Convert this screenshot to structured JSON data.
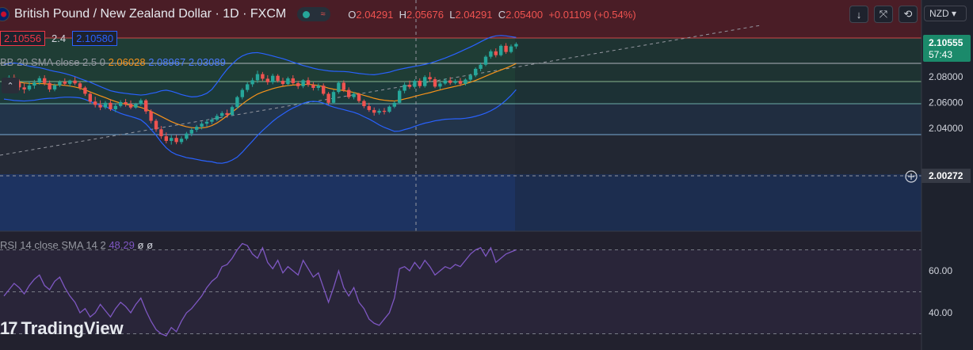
{
  "header": {
    "symbol": "British Pound / New Zealand Dollar · 1D · FXCM",
    "open_label": "O",
    "open": "2.04291",
    "high_label": "H",
    "high": "2.05676",
    "low_label": "L",
    "low": "2.04291",
    "close_label": "C",
    "close": "2.05400",
    "change": "+0.01109 (+0.54%)"
  },
  "toolbar": {
    "currency": "NZD"
  },
  "quote": {
    "bid": "2.10556",
    "spread": "2.4",
    "ask": "2.10580"
  },
  "indicators": {
    "bb_label": "BB 20 SMA close 2.5 0",
    "bb_basis": "2.06028",
    "bb_upper": "2.08967",
    "bb_lower": "2.03089",
    "rsi_label": "RSI 14 close SMA 14 2",
    "rsi_value": "48.29",
    "rsi_na1": "ø",
    "rsi_na2": "ø"
  },
  "watermark": "TradingView",
  "colors": {
    "up": "#26a69a",
    "down": "#ef5350",
    "bb_band": "#2962ff",
    "bb_basis": "#f7931a",
    "rsi": "#7e57c2",
    "price_tag": "#1b8a6b"
  },
  "chart_data": [
    {
      "type": "candlestick",
      "title": "British Pound / New Zealand Dollar · 1D · FXCM",
      "price_axis": {
        "ticks": [
          "2.08000",
          "2.06000",
          "2.04000"
        ]
      },
      "last_price": "2.10555",
      "countdown": "57:43",
      "crosshair_price": "2.00272",
      "candles": [
        [
          2.0738,
          2.0778,
          2.0696,
          2.0755
        ],
        [
          2.0755,
          2.0812,
          2.0728,
          2.0795
        ],
        [
          2.0795,
          2.0818,
          2.0734,
          2.0758
        ],
        [
          2.0758,
          2.0779,
          2.0695,
          2.0718
        ],
        [
          2.0718,
          2.0748,
          2.0671,
          2.0702
        ],
        [
          2.0702,
          2.0763,
          2.0689,
          2.0732
        ],
        [
          2.0732,
          2.0776,
          2.0708,
          2.0755
        ],
        [
          2.0755,
          2.0807,
          2.0739,
          2.0789
        ],
        [
          2.0789,
          2.0812,
          2.0733,
          2.0752
        ],
        [
          2.0752,
          2.0771,
          2.0682,
          2.0702
        ],
        [
          2.0702,
          2.0748,
          2.0688,
          2.0734
        ],
        [
          2.0734,
          2.0773,
          2.0721,
          2.0762
        ],
        [
          2.0762,
          2.0788,
          2.0731,
          2.0746
        ],
        [
          2.0746,
          2.0778,
          2.0725,
          2.0771
        ],
        [
          2.0771,
          2.0798,
          2.0734,
          2.0749
        ],
        [
          2.0749,
          2.0762,
          2.0697,
          2.0716
        ],
        [
          2.0716,
          2.0728,
          2.0651,
          2.0668
        ],
        [
          2.0668,
          2.0684,
          2.0592,
          2.0608
        ],
        [
          2.0608,
          2.0645,
          2.0562,
          2.0582
        ],
        [
          2.0582,
          2.0617,
          2.0541,
          2.0562
        ],
        [
          2.0562,
          2.0612,
          2.0549,
          2.0598
        ],
        [
          2.0598,
          2.0627,
          2.0535,
          2.0548
        ],
        [
          2.0548,
          2.0589,
          2.0525,
          2.0574
        ],
        [
          2.0574,
          2.0618,
          2.0562,
          2.0603
        ],
        [
          2.0603,
          2.0628,
          2.0568,
          2.0589
        ],
        [
          2.0589,
          2.0616,
          2.0548,
          2.0561
        ],
        [
          2.0561,
          2.0598,
          2.0552,
          2.0588
        ],
        [
          2.0588,
          2.0631,
          2.0575,
          2.0617
        ],
        [
          2.0617,
          2.0628,
          2.0512,
          2.0531
        ],
        [
          2.0531,
          2.0547,
          2.0438,
          2.0458
        ],
        [
          2.0458,
          2.0472,
          2.0372,
          2.0392
        ],
        [
          2.0392,
          2.0418,
          2.0318,
          2.0338
        ],
        [
          2.0338,
          2.0368,
          2.0283,
          2.0302
        ],
        [
          2.0302,
          2.0346,
          2.0273,
          2.0325
        ],
        [
          2.0325,
          2.0348,
          2.0276,
          2.0293
        ],
        [
          2.0293,
          2.0338,
          2.0276,
          2.0319
        ],
        [
          2.0319,
          2.0372,
          2.0306,
          2.0359
        ],
        [
          2.0359,
          2.0402,
          2.0338,
          2.0388
        ],
        [
          2.0388,
          2.0426,
          2.0371,
          2.0412
        ],
        [
          2.0412,
          2.0452,
          2.0391,
          2.0436
        ],
        [
          2.0436,
          2.0468,
          2.0412,
          2.0451
        ],
        [
          2.0451,
          2.0483,
          2.0432,
          2.0467
        ],
        [
          2.0467,
          2.0512,
          2.0455,
          2.0496
        ],
        [
          2.0496,
          2.0533,
          2.0478,
          2.0518
        ],
        [
          2.0518,
          2.0545,
          2.0482,
          2.0504
        ],
        [
          2.0504,
          2.0578,
          2.0496,
          2.0565
        ],
        [
          2.0565,
          2.0653,
          2.0552,
          2.0642
        ],
        [
          2.0642,
          2.0712,
          2.0625,
          2.0698
        ],
        [
          2.0698,
          2.0758,
          2.0681,
          2.0742
        ],
        [
          2.0742,
          2.0792,
          2.0722,
          2.0773
        ],
        [
          2.0773,
          2.0848,
          2.0752,
          2.0821
        ],
        [
          2.0821,
          2.0838,
          2.0768,
          2.0785
        ],
        [
          2.0785,
          2.0812,
          2.0738,
          2.0758
        ],
        [
          2.0758,
          2.0824,
          2.0742,
          2.0808
        ],
        [
          2.0808,
          2.0821,
          2.0756,
          2.0769
        ],
        [
          2.0769,
          2.0792,
          2.0728,
          2.0744
        ],
        [
          2.0744,
          2.0801,
          2.0732,
          2.0788
        ],
        [
          2.0788,
          2.0812,
          2.0736,
          2.0751
        ],
        [
          2.0751,
          2.0768,
          2.0706,
          2.0727
        ],
        [
          2.0727,
          2.0782,
          2.0712,
          2.0773
        ],
        [
          2.0773,
          2.0796,
          2.0722,
          2.0738
        ],
        [
          2.0738,
          2.0758,
          2.0694,
          2.0714
        ],
        [
          2.0714,
          2.0748,
          2.0693,
          2.0731
        ],
        [
          2.0731,
          2.0749,
          2.0655,
          2.0668
        ],
        [
          2.0668,
          2.0682,
          2.0582,
          2.0598
        ],
        [
          2.0598,
          2.0698,
          2.0588,
          2.0682
        ],
        [
          2.0682,
          2.0768,
          2.0668,
          2.0754
        ],
        [
          2.0754,
          2.0772,
          2.0682,
          2.0698
        ],
        [
          2.0698,
          2.0718,
          2.0628,
          2.0642
        ],
        [
          2.0642,
          2.0682,
          2.0625,
          2.0668
        ],
        [
          2.0668,
          2.0676,
          2.0598,
          2.0612
        ],
        [
          2.0612,
          2.0624,
          2.0556,
          2.0572
        ],
        [
          2.0572,
          2.0598,
          2.0528,
          2.0542
        ],
        [
          2.0542,
          2.0562,
          2.0498,
          2.0521
        ],
        [
          2.0521,
          2.0552,
          2.0506,
          2.0536
        ],
        [
          2.0536,
          2.0558,
          2.0508,
          2.0528
        ],
        [
          2.0528,
          2.0578,
          2.0519,
          2.0568
        ],
        [
          2.0568,
          2.0612,
          2.0556,
          2.0598
        ],
        [
          2.0598,
          2.0708,
          2.0589,
          2.0692
        ],
        [
          2.0692,
          2.0756,
          2.0672,
          2.0738
        ],
        [
          2.0738,
          2.0771,
          2.0706,
          2.0722
        ],
        [
          2.0722,
          2.0781,
          2.0708,
          2.0769
        ],
        [
          2.0769,
          2.0788,
          2.0712,
          2.0728
        ],
        [
          2.0728,
          2.0812,
          2.0716,
          2.0798
        ],
        [
          2.0798,
          2.0836,
          2.0763,
          2.0781
        ],
        [
          2.0781,
          2.0798,
          2.0712,
          2.0724
        ],
        [
          2.0724,
          2.0762,
          2.0702,
          2.0748
        ],
        [
          2.0748,
          2.0788,
          2.0736,
          2.0772
        ],
        [
          2.0772,
          2.0798,
          2.0738,
          2.0753
        ],
        [
          2.0753,
          2.0782,
          2.0741,
          2.0768
        ],
        [
          2.0768,
          2.0791,
          2.0728,
          2.0746
        ],
        [
          2.0746,
          2.0788,
          2.0732,
          2.0778
        ],
        [
          2.0778,
          2.0824,
          2.0761,
          2.0811
        ],
        [
          2.0811,
          2.0873,
          2.0798,
          2.0862
        ],
        [
          2.0862,
          2.0911,
          2.0843,
          2.0894
        ],
        [
          2.0894,
          2.0968,
          2.0882,
          2.0956
        ],
        [
          2.0956,
          2.1012,
          2.0941,
          2.0998
        ],
        [
          2.0998,
          2.1021,
          2.0951,
          2.0968
        ],
        [
          2.0968,
          2.1052,
          2.0958,
          2.1041
        ],
        [
          2.1041,
          2.1062,
          2.0978,
          2.0993
        ],
        [
          2.0993,
          2.1051,
          2.0982,
          2.1036
        ],
        [
          2.1036,
          2.1068,
          2.1018,
          2.1055
        ]
      ],
      "bb_upper": [
        2.0895,
        2.0902,
        2.0908,
        2.0902,
        2.0892,
        2.0883,
        2.0876,
        2.0871,
        2.0862,
        2.0851,
        2.0842,
        2.0835,
        2.0826,
        2.0814,
        2.0802,
        2.0786,
        2.0772,
        2.0758,
        2.0741,
        2.0724,
        2.0708,
        2.0692,
        2.0683,
        2.0676,
        2.0671,
        2.0666,
        2.0662,
        2.0658,
        2.0662,
        2.0671,
        2.0678,
        2.0691,
        2.0696,
        2.0688,
        2.0676,
        2.0662,
        2.0652,
        2.0644,
        2.0646,
        2.0656,
        2.0672,
        2.0702,
        2.0752,
        2.0808,
        2.0858,
        2.0899,
        2.0936,
        2.0962,
        2.0978,
        2.0986,
        2.0988,
        2.0981,
        2.0972,
        2.0962,
        2.0951,
        2.0941,
        2.0928,
        2.0914,
        2.0901,
        2.0888,
        2.0878,
        2.0867,
        2.0858,
        2.0852,
        2.0846,
        2.0843,
        2.0842,
        2.0841,
        2.0838,
        2.0832,
        2.0826,
        2.0822,
        2.0818,
        2.0816,
        2.0822,
        2.0829,
        2.0836,
        2.0848,
        2.0858,
        2.0866,
        2.0874,
        2.0881,
        2.0888,
        2.0896,
        2.0906,
        2.0918,
        2.0932,
        2.0946,
        2.0962,
        2.0978,
        2.0996,
        2.1014,
        2.1032,
        2.1051,
        2.1072,
        2.1092,
        2.1108,
        2.1118,
        2.1121,
        2.1118,
        2.1112,
        2.1106
      ],
      "bb_basis": [
        2.0761,
        2.0762,
        2.0762,
        2.0758,
        2.0752,
        2.0749,
        2.0747,
        2.0748,
        2.0746,
        2.0742,
        2.0738,
        2.0737,
        2.0734,
        2.0728,
        2.0721,
        2.0711,
        2.0698,
        2.0683,
        2.0667,
        2.0652,
        2.0638,
        2.0622,
        2.0608,
        2.0596,
        2.0587,
        2.0579,
        2.0571,
        2.0562,
        2.0548,
        2.0531,
        2.0512,
        2.0492,
        2.0472,
        2.0452,
        2.0436,
        2.0423,
        2.0412,
        2.0405,
        2.0402,
        2.0403,
        2.0408,
        2.0421,
        2.0441,
        2.0468,
        2.0497,
        2.0526,
        2.0556,
        2.0588,
        2.0618,
        2.0643,
        2.0666,
        2.0682,
        2.0695,
        2.0708,
        2.0718,
        2.0726,
        2.0732,
        2.0736,
        2.0738,
        2.0741,
        2.0742,
        2.0738,
        2.0732,
        2.0724,
        2.0712,
        2.0704,
        2.0698,
        2.0693,
        2.0686,
        2.0678,
        2.0668,
        2.0656,
        2.0645,
        2.0633,
        2.0624,
        2.0618,
        2.0614,
        2.0612,
        2.0618,
        2.0628,
        2.0637,
        2.0648,
        2.0658,
        2.0668,
        2.0677,
        2.0688,
        2.0698,
        2.0708,
        2.0717,
        2.0726,
        2.0735,
        2.0746,
        2.0758,
        2.0772,
        2.0788,
        2.0805,
        2.0822,
        2.0838,
        2.0853,
        2.0868,
        2.0884,
        2.0903
      ],
      "bb_lower": [
        2.0627,
        2.0622,
        2.0616,
        2.0614,
        2.0612,
        2.0615,
        2.0618,
        2.0625,
        2.063,
        2.0633,
        2.0634,
        2.0639,
        2.0642,
        2.0642,
        2.064,
        2.0636,
        2.0624,
        2.0608,
        2.0593,
        2.058,
        2.0568,
        2.0552,
        2.0533,
        2.0516,
        2.0503,
        2.0492,
        2.048,
        2.0466,
        2.0434,
        2.0391,
        2.0346,
        2.0293,
        2.0248,
        2.0216,
        2.0196,
        2.0184,
        2.0172,
        2.0166,
        2.0158,
        2.015,
        2.0144,
        2.014,
        2.013,
        2.0128,
        2.0136,
        2.0153,
        2.0176,
        2.0214,
        2.0258,
        2.03,
        2.0344,
        2.0383,
        2.0418,
        2.0454,
        2.0485,
        2.0511,
        2.0536,
        2.0558,
        2.0575,
        2.0594,
        2.0606,
        2.0609,
        2.0606,
        2.0596,
        2.0578,
        2.0565,
        2.0554,
        2.0545,
        2.0534,
        2.0524,
        2.051,
        2.049,
        2.0472,
        2.045,
        2.0426,
        2.0407,
        2.0392,
        2.0376,
        2.0378,
        2.039,
        2.04,
        2.0415,
        2.0428,
        2.044,
        2.0448,
        2.0458,
        2.0464,
        2.047,
        2.0472,
        2.0474,
        2.0474,
        2.0478,
        2.0484,
        2.0493,
        2.0504,
        2.0518,
        2.0536,
        2.0558,
        2.0585,
        2.0618,
        2.0656,
        2.07
      ]
    },
    {
      "type": "line",
      "title": "RSI 14 close SMA 14 2",
      "y_axis": {
        "ticks": [
          "60.00",
          "40.00"
        ],
        "levels": [
          70,
          50,
          30
        ]
      },
      "series": [
        {
          "values": [
            48,
            51,
            54,
            52,
            49,
            53,
            56,
            58,
            53,
            51,
            55,
            57,
            52,
            48,
            45,
            40,
            42,
            38,
            40,
            44,
            41,
            38,
            42,
            45,
            43,
            40,
            44,
            47,
            41,
            36,
            32,
            30,
            29,
            33,
            31,
            36,
            40,
            42,
            45,
            48,
            52,
            55,
            57,
            62,
            63,
            66,
            70,
            73,
            72,
            68,
            66,
            71,
            64,
            61,
            65,
            59,
            62,
            60,
            58,
            65,
            61,
            57,
            59,
            52,
            45,
            52,
            60,
            52,
            48,
            52,
            45,
            42,
            37,
            35,
            34,
            37,
            40,
            47,
            61,
            62,
            60,
            64,
            61,
            65,
            62,
            58,
            60,
            62,
            61,
            63,
            62,
            65,
            68,
            70,
            71,
            67,
            71,
            64,
            66,
            68,
            69,
            70
          ]
        }
      ]
    }
  ]
}
